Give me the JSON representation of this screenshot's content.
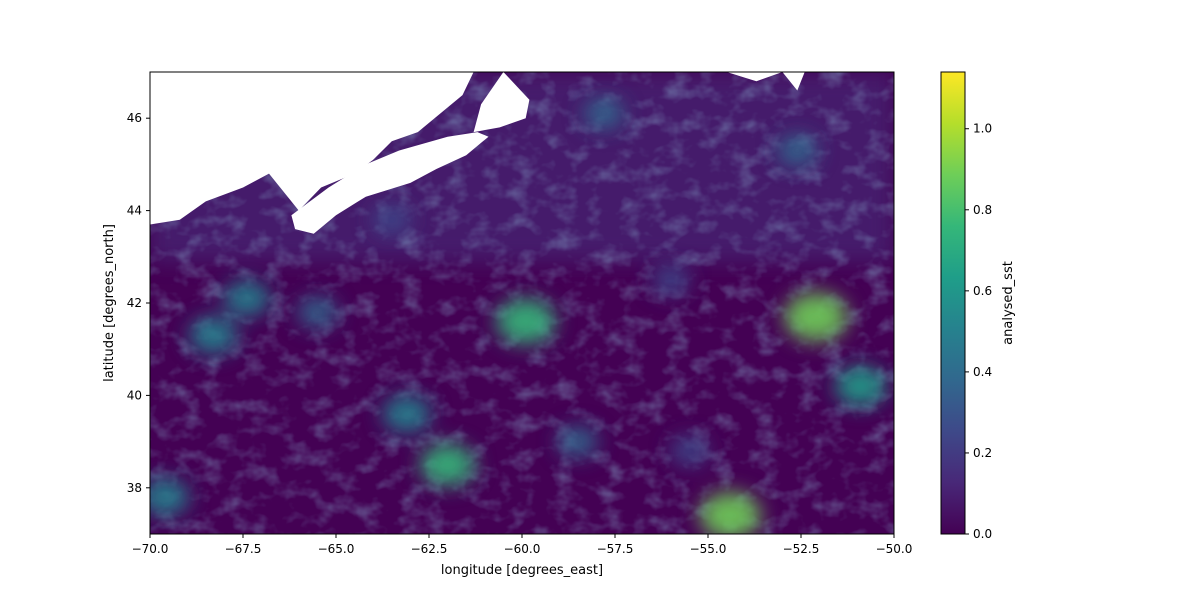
{
  "chart_data": {
    "type": "heatmap",
    "title": "",
    "xlabel": "longitude [degrees_east]",
    "ylabel": "latitude [degrees_north]",
    "xlim": [
      -70.0,
      -50.0
    ],
    "ylim": [
      37.0,
      47.0
    ],
    "x_ticks": [
      -70.0,
      -67.5,
      -65.0,
      -62.5,
      -60.0,
      -57.5,
      -55.0,
      -52.5,
      -50.0
    ],
    "x_tick_labels": [
      "−70.0",
      "−67.5",
      "−65.0",
      "−62.5",
      "−60.0",
      "−57.5",
      "−55.0",
      "−52.5",
      "−50.0"
    ],
    "y_ticks": [
      38,
      40,
      42,
      44,
      46
    ],
    "y_tick_labels": [
      "38",
      "40",
      "42",
      "44",
      "46"
    ],
    "colorbar": {
      "label": "analysed_sst",
      "cmap": "viridis",
      "vmin": 0.0,
      "vmax": 1.14,
      "ticks": [
        0.0,
        0.2,
        0.4,
        0.6,
        0.8,
        1.0
      ],
      "tick_labels": [
        "0.0",
        "0.2",
        "0.4",
        "0.6",
        "0.8",
        "1.0"
      ],
      "colors": [
        "#440154",
        "#482878",
        "#3e4989",
        "#31688e",
        "#26828e",
        "#1f9e89",
        "#35b779",
        "#6ece58",
        "#b5de2b",
        "#fde725"
      ]
    },
    "grid": false,
    "highlights": [
      {
        "lon": -52.1,
        "lat": 41.7,
        "value": 0.9
      },
      {
        "lon": -54.4,
        "lat": 37.4,
        "value": 0.85
      },
      {
        "lon": -59.9,
        "lat": 41.6,
        "value": 0.8
      },
      {
        "lon": -68.3,
        "lat": 41.3,
        "value": 0.55
      },
      {
        "lon": -67.4,
        "lat": 42.1,
        "value": 0.5
      },
      {
        "lon": -52.6,
        "lat": 45.3,
        "value": 0.35
      },
      {
        "lon": -62.0,
        "lat": 38.5,
        "value": 0.7
      },
      {
        "lon": -50.9,
        "lat": 40.2,
        "value": 0.6
      },
      {
        "lon": -63.1,
        "lat": 39.6,
        "value": 0.55
      },
      {
        "lon": -69.6,
        "lat": 37.8,
        "value": 0.55
      },
      {
        "lon": -57.8,
        "lat": 46.1,
        "value": 0.35
      },
      {
        "lon": -65.5,
        "lat": 41.8,
        "value": 0.35
      },
      {
        "lon": -56.0,
        "lat": 42.5,
        "value": 0.3
      },
      {
        "lon": -63.5,
        "lat": 43.8,
        "value": 0.3
      },
      {
        "lon": -58.5,
        "lat": 39.0,
        "value": 0.35
      },
      {
        "lon": -55.5,
        "lat": 38.8,
        "value": 0.3
      }
    ],
    "land_mask": [
      [
        [
          -70.0,
          47.0
        ],
        [
          -61.3,
          47.0
        ],
        [
          -61.6,
          46.5
        ],
        [
          -62.8,
          45.7
        ],
        [
          -63.5,
          45.5
        ],
        [
          -64.0,
          45.1
        ],
        [
          -64.5,
          44.8
        ],
        [
          -65.4,
          44.5
        ],
        [
          -66.0,
          44.0
        ],
        [
          -66.8,
          44.8
        ],
        [
          -67.5,
          44.5
        ],
        [
          -68.5,
          44.2
        ],
        [
          -69.2,
          43.8
        ],
        [
          -70.0,
          43.7
        ]
      ],
      [
        [
          -66.2,
          43.9
        ],
        [
          -65.2,
          44.5
        ],
        [
          -64.2,
          45.0
        ],
        [
          -63.3,
          45.3
        ],
        [
          -62.0,
          45.6
        ],
        [
          -61.2,
          45.7
        ],
        [
          -60.9,
          45.6
        ],
        [
          -61.5,
          45.2
        ],
        [
          -62.3,
          44.9
        ],
        [
          -63.0,
          44.6
        ],
        [
          -64.2,
          44.3
        ],
        [
          -65.0,
          43.9
        ],
        [
          -65.6,
          43.5
        ],
        [
          -66.1,
          43.6
        ]
      ],
      [
        [
          -60.5,
          47.0
        ],
        [
          -59.8,
          46.4
        ],
        [
          -59.9,
          46.0
        ],
        [
          -60.6,
          45.8
        ],
        [
          -61.3,
          45.7
        ],
        [
          -61.1,
          46.3
        ]
      ],
      [
        [
          -54.5,
          47.0
        ],
        [
          -53.7,
          46.8
        ],
        [
          -53.0,
          47.0
        ]
      ],
      [
        [
          -53.0,
          47.0
        ],
        [
          -52.6,
          46.6
        ],
        [
          -52.4,
          47.0
        ]
      ]
    ]
  }
}
